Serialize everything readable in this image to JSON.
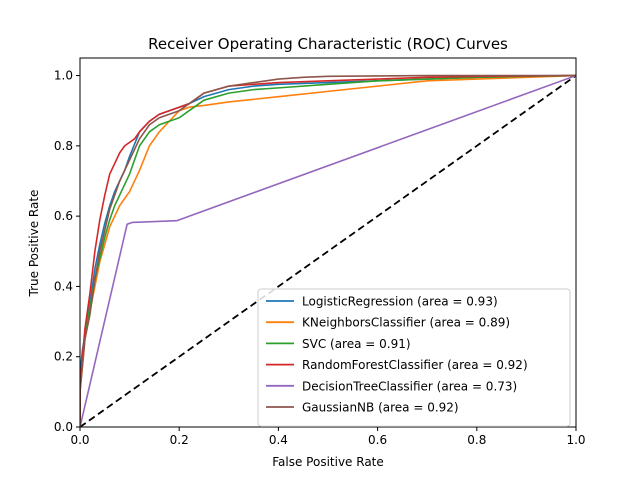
{
  "chart_data": {
    "type": "line",
    "title": "Receiver Operating Characteristic (ROC) Curves",
    "xlabel": "False Positive Rate",
    "ylabel": "True Positive Rate",
    "xlim": [
      0.0,
      1.0
    ],
    "ylim": [
      0.0,
      1.05
    ],
    "xticks": [
      0.0,
      0.2,
      0.4,
      0.6,
      0.8,
      1.0
    ],
    "xtick_labels": [
      "0.0",
      "0.2",
      "0.4",
      "0.6",
      "0.8",
      "1.0"
    ],
    "yticks": [
      0.0,
      0.2,
      0.4,
      0.6,
      0.8,
      1.0
    ],
    "ytick_labels": [
      "0.0",
      "0.2",
      "0.4",
      "0.6",
      "0.8",
      "1.0"
    ],
    "grid": false,
    "legend_position": "lower-right",
    "series": [
      {
        "name": "LogisticRegression (area = 0.93)",
        "color": "#1f77b4",
        "x": [
          0,
          0,
          0.005,
          0.01,
          0.02,
          0.03,
          0.04,
          0.05,
          0.06,
          0.07,
          0.08,
          0.09,
          0.1,
          0.12,
          0.14,
          0.16,
          0.18,
          0.2,
          0.22,
          0.25,
          0.3,
          0.35,
          0.4,
          0.5,
          0.6,
          0.7,
          0.8,
          0.9,
          1.0
        ],
        "y": [
          0,
          0.15,
          0.22,
          0.26,
          0.35,
          0.45,
          0.52,
          0.58,
          0.63,
          0.67,
          0.7,
          0.73,
          0.77,
          0.84,
          0.87,
          0.89,
          0.9,
          0.91,
          0.92,
          0.94,
          0.96,
          0.97,
          0.975,
          0.98,
          0.985,
          0.99,
          0.995,
          0.998,
          1.0
        ]
      },
      {
        "name": "KNeighborsClassifier (area = 0.89)",
        "color": "#ff7f0e",
        "x": [
          0,
          0,
          0.01,
          0.02,
          0.03,
          0.04,
          0.05,
          0.06,
          0.08,
          0.1,
          0.12,
          0.14,
          0.16,
          0.18,
          0.2,
          0.22,
          0.25,
          0.3,
          0.4,
          0.5,
          0.6,
          0.7,
          0.8,
          0.9,
          1.0
        ],
        "y": [
          0,
          0.1,
          0.25,
          0.33,
          0.4,
          0.47,
          0.52,
          0.57,
          0.63,
          0.67,
          0.73,
          0.8,
          0.84,
          0.87,
          0.9,
          0.91,
          0.915,
          0.925,
          0.94,
          0.955,
          0.97,
          0.985,
          0.99,
          0.995,
          1.0
        ]
      },
      {
        "name": "SVC (area = 0.91)",
        "color": "#2ca02c",
        "x": [
          0,
          0,
          0.01,
          0.02,
          0.03,
          0.04,
          0.05,
          0.06,
          0.07,
          0.08,
          0.1,
          0.12,
          0.14,
          0.16,
          0.18,
          0.2,
          0.22,
          0.25,
          0.3,
          0.35,
          0.4,
          0.5,
          0.6,
          0.7,
          0.8,
          0.9,
          1.0
        ],
        "y": [
          0,
          0.12,
          0.26,
          0.34,
          0.42,
          0.48,
          0.54,
          0.59,
          0.63,
          0.66,
          0.72,
          0.8,
          0.84,
          0.86,
          0.87,
          0.88,
          0.9,
          0.93,
          0.95,
          0.96,
          0.965,
          0.975,
          0.985,
          0.99,
          0.995,
          0.998,
          1.0
        ]
      },
      {
        "name": "RandomForestClassifier (area = 0.92)",
        "color": "#d62728",
        "x": [
          0,
          0,
          0.005,
          0.01,
          0.02,
          0.03,
          0.04,
          0.05,
          0.06,
          0.07,
          0.08,
          0.09,
          0.1,
          0.11,
          0.12,
          0.14,
          0.16,
          0.18,
          0.2,
          0.22,
          0.25,
          0.3,
          0.4,
          0.5,
          0.6,
          0.7,
          0.8,
          0.9,
          1.0
        ],
        "y": [
          0,
          0.12,
          0.2,
          0.28,
          0.38,
          0.5,
          0.59,
          0.66,
          0.72,
          0.75,
          0.78,
          0.8,
          0.81,
          0.82,
          0.84,
          0.87,
          0.89,
          0.9,
          0.91,
          0.92,
          0.95,
          0.97,
          0.98,
          0.985,
          0.99,
          0.995,
          0.998,
          0.999,
          1.0
        ]
      },
      {
        "name": "DecisionTreeClassifier (area = 0.73)",
        "color": "#9467bd",
        "x": [
          0,
          0.095,
          0.105,
          0.195,
          1.0
        ],
        "y": [
          0,
          0.577,
          0.582,
          0.587,
          1.0
        ]
      },
      {
        "name": "GaussianNB (area = 0.92)",
        "color": "#8c564b",
        "x": [
          0,
          0,
          0.01,
          0.02,
          0.03,
          0.04,
          0.05,
          0.06,
          0.07,
          0.08,
          0.1,
          0.12,
          0.14,
          0.16,
          0.18,
          0.2,
          0.22,
          0.25,
          0.3,
          0.35,
          0.4,
          0.45,
          0.5,
          0.6,
          0.7,
          0.8,
          0.9,
          1.0
        ],
        "y": [
          0,
          0.1,
          0.25,
          0.32,
          0.42,
          0.5,
          0.56,
          0.62,
          0.66,
          0.7,
          0.76,
          0.82,
          0.86,
          0.88,
          0.89,
          0.9,
          0.92,
          0.95,
          0.97,
          0.98,
          0.99,
          0.995,
          0.998,
          0.999,
          1.0,
          1.0,
          1.0,
          1.0
        ]
      }
    ],
    "reference_line": {
      "style": "dashed",
      "color": "#000000",
      "x": [
        0,
        1
      ],
      "y": [
        0,
        1
      ]
    }
  }
}
